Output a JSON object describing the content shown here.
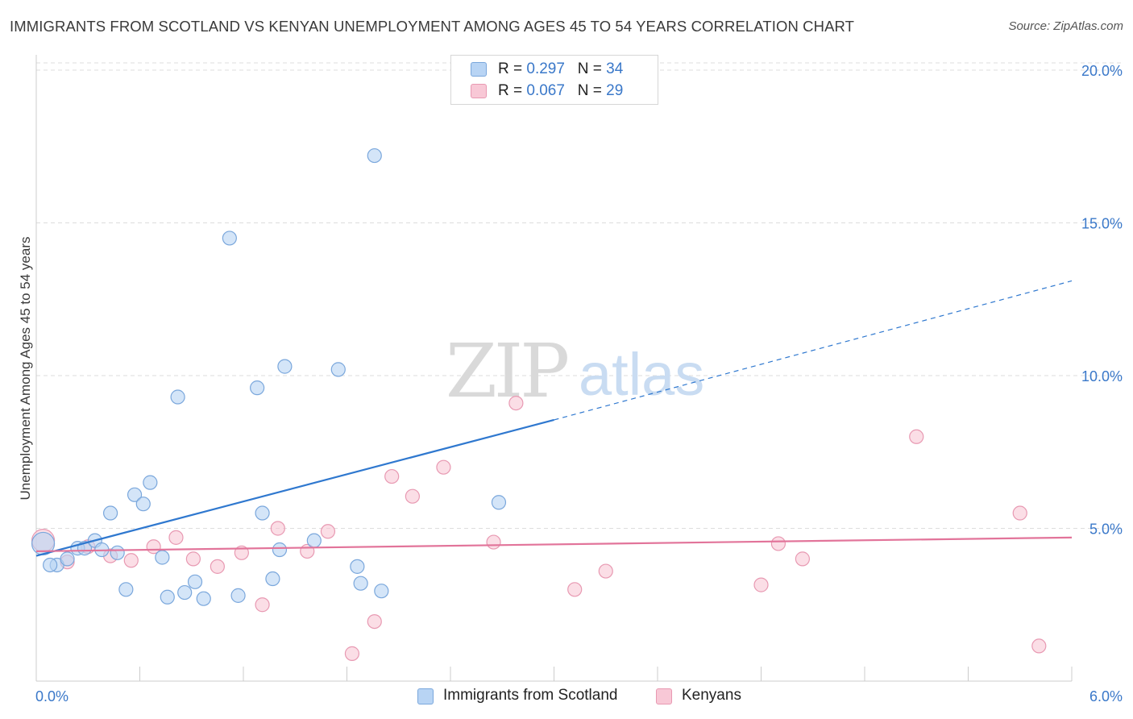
{
  "title": "IMMIGRANTS FROM SCOTLAND VS KENYAN UNEMPLOYMENT AMONG AGES 45 TO 54 YEARS CORRELATION CHART",
  "source": "Source: ZipAtlas.com",
  "watermark": {
    "zip": "ZIP",
    "atlas": "atlas"
  },
  "colors": {
    "blue_fill": "#b8d4f4",
    "blue_stroke": "#7aa7dc",
    "blue_line": "#2f78cf",
    "pink_fill": "#f8c8d6",
    "pink_stroke": "#e899b2",
    "pink_line": "#e2749a",
    "axis_text": "#3a78c9",
    "grid": "#dddddd"
  },
  "legend_top": [
    {
      "r_label": "R = ",
      "r_value": "0.297",
      "n_label": "N = ",
      "n_value": "34"
    },
    {
      "r_label": "R = ",
      "r_value": "0.067",
      "n_label": "N = ",
      "n_value": "29"
    }
  ],
  "chart_data": {
    "type": "scatter",
    "title": "IMMIGRANTS FROM SCOTLAND VS KENYAN UNEMPLOYMENT AMONG AGES 45 TO 54 YEARS CORRELATION CHART",
    "xlabel": "",
    "ylabel": "Unemployment Among Ages 45 to 54 years",
    "xlim": [
      0,
      6
    ],
    "ylim": [
      0,
      20.5
    ],
    "x_tick_labels": [
      "0.0%",
      "6.0%"
    ],
    "y_ticks": [
      5,
      10,
      15,
      20
    ],
    "y_tick_labels": [
      "5.0%",
      "10.0%",
      "15.0%",
      "20.0%"
    ],
    "grid": true,
    "legend_placement": "bottom",
    "series": [
      {
        "name": "Immigrants from Scotland",
        "color": "#b8d4f4",
        "r": 0.297,
        "n": 34,
        "trend": {
          "x0": 0.0,
          "y0": 4.1,
          "x1": 3.0,
          "y1": 8.55,
          "dashed_to_x": 6.0,
          "dashed_to_y": 13.1
        },
        "points": [
          [
            0.04,
            4.5
          ],
          [
            0.12,
            3.8
          ],
          [
            0.18,
            4.0
          ],
          [
            0.24,
            4.35
          ],
          [
            0.28,
            4.35
          ],
          [
            0.34,
            4.6
          ],
          [
            0.43,
            5.5
          ],
          [
            0.47,
            4.2
          ],
          [
            0.52,
            3.0
          ],
          [
            0.57,
            6.1
          ],
          [
            0.62,
            5.8
          ],
          [
            0.66,
            6.5
          ],
          [
            0.73,
            4.05
          ],
          [
            0.76,
            2.75
          ],
          [
            0.82,
            9.3
          ],
          [
            0.86,
            2.9
          ],
          [
            0.92,
            3.25
          ],
          [
            0.97,
            2.7
          ],
          [
            1.12,
            14.5
          ],
          [
            1.17,
            2.8
          ],
          [
            1.28,
            9.6
          ],
          [
            1.31,
            5.5
          ],
          [
            1.37,
            3.35
          ],
          [
            1.41,
            4.3
          ],
          [
            1.44,
            10.3
          ],
          [
            1.61,
            4.6
          ],
          [
            1.75,
            10.2
          ],
          [
            1.86,
            3.75
          ],
          [
            1.88,
            3.2
          ],
          [
            1.96,
            17.2
          ],
          [
            2.0,
            2.95
          ],
          [
            2.68,
            5.85
          ],
          [
            0.08,
            3.8
          ],
          [
            0.38,
            4.3
          ]
        ]
      },
      {
        "name": "Kenyans",
        "color": "#f8c8d6",
        "r": 0.067,
        "n": 29,
        "trend": {
          "x0": 0.0,
          "y0": 4.25,
          "x1": 6.0,
          "y1": 4.7
        },
        "points": [
          [
            0.04,
            4.6
          ],
          [
            0.18,
            3.9
          ],
          [
            0.3,
            4.4
          ],
          [
            0.43,
            4.1
          ],
          [
            0.55,
            3.95
          ],
          [
            0.68,
            4.4
          ],
          [
            0.81,
            4.7
          ],
          [
            0.91,
            4.0
          ],
          [
            1.05,
            3.75
          ],
          [
            1.19,
            4.2
          ],
          [
            1.31,
            2.5
          ],
          [
            1.4,
            5.0
          ],
          [
            1.57,
            4.25
          ],
          [
            1.69,
            4.9
          ],
          [
            1.83,
            0.9
          ],
          [
            1.96,
            1.95
          ],
          [
            2.06,
            6.7
          ],
          [
            2.18,
            6.05
          ],
          [
            2.36,
            7.0
          ],
          [
            2.65,
            4.55
          ],
          [
            2.78,
            9.1
          ],
          [
            3.12,
            3.0
          ],
          [
            3.3,
            3.6
          ],
          [
            4.2,
            3.15
          ],
          [
            4.3,
            4.5
          ],
          [
            4.44,
            4.0
          ],
          [
            5.1,
            8.0
          ],
          [
            5.7,
            5.5
          ],
          [
            5.81,
            1.15
          ]
        ]
      }
    ]
  },
  "legend_bottom": [
    "Immigrants from Scotland",
    "Kenyans"
  ]
}
